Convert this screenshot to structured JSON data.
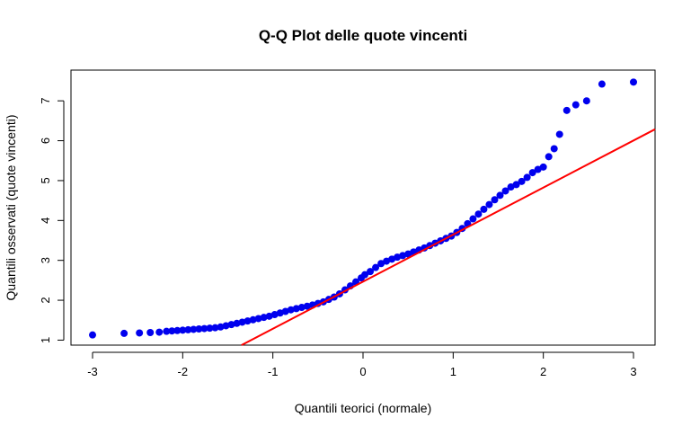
{
  "chart_data": {
    "type": "scatter",
    "title": "Q-Q Plot delle quote vincenti",
    "xlabel": "Quantili teorici (normale)",
    "ylabel": "Quantili osservati (quote vincenti)",
    "xlim": [
      -3.0,
      3.0
    ],
    "ylim": [
      1.1,
      7.5
    ],
    "x_ticks": [
      -3,
      -2,
      -1,
      0,
      1,
      2,
      3
    ],
    "x_tick_labels": [
      "-3",
      "-2",
      "-1",
      "0",
      "1",
      "2",
      "3"
    ],
    "y_ticks": [
      1,
      2,
      3,
      4,
      5,
      6,
      7
    ],
    "y_tick_labels": [
      "1",
      "2",
      "3",
      "4",
      "5",
      "6",
      "7"
    ],
    "grid": false,
    "point_color": "#0000ee",
    "line_color": "#ff0000",
    "reference_line": {
      "intercept": 2.465,
      "slope": 1.18
    },
    "points_x": [
      -3.0,
      -2.65,
      -2.48,
      -2.36,
      -2.26,
      -2.18,
      -2.12,
      -2.06,
      -2.0,
      -1.94,
      -1.88,
      -1.82,
      -1.76,
      -1.7,
      -1.64,
      -1.58,
      -1.52,
      -1.46,
      -1.4,
      -1.34,
      -1.28,
      -1.22,
      -1.16,
      -1.1,
      -1.04,
      -0.98,
      -0.92,
      -0.86,
      -0.8,
      -0.74,
      -0.68,
      -0.62,
      -0.56,
      -0.5,
      -0.44,
      -0.38,
      -0.32,
      -0.26,
      -0.2,
      -0.14,
      -0.08,
      -0.02,
      0.02,
      0.08,
      0.14,
      0.2,
      0.26,
      0.32,
      0.38,
      0.44,
      0.5,
      0.56,
      0.62,
      0.68,
      0.74,
      0.8,
      0.86,
      0.92,
      0.98,
      1.04,
      1.1,
      1.16,
      1.22,
      1.28,
      1.34,
      1.4,
      1.46,
      1.52,
      1.58,
      1.64,
      1.7,
      1.76,
      1.82,
      1.88,
      1.94,
      2.0,
      2.06,
      2.12,
      2.18,
      2.26,
      2.36,
      2.48,
      2.65,
      3.0
    ],
    "points_y": [
      1.13,
      1.17,
      1.18,
      1.19,
      1.2,
      1.22,
      1.23,
      1.24,
      1.25,
      1.26,
      1.27,
      1.28,
      1.29,
      1.3,
      1.31,
      1.33,
      1.36,
      1.39,
      1.42,
      1.45,
      1.48,
      1.51,
      1.54,
      1.57,
      1.6,
      1.64,
      1.68,
      1.72,
      1.76,
      1.79,
      1.82,
      1.85,
      1.88,
      1.92,
      1.96,
      2.02,
      2.08,
      2.16,
      2.26,
      2.36,
      2.46,
      2.56,
      2.64,
      2.72,
      2.82,
      2.92,
      2.98,
      3.03,
      3.08,
      3.12,
      3.16,
      3.21,
      3.26,
      3.31,
      3.37,
      3.43,
      3.49,
      3.55,
      3.61,
      3.7,
      3.8,
      3.92,
      4.04,
      4.16,
      4.28,
      4.4,
      4.52,
      4.63,
      4.74,
      4.84,
      4.9,
      4.98,
      5.08,
      5.2,
      5.28,
      5.34,
      5.6,
      5.8,
      6.16,
      6.76,
      6.9,
      7.0,
      7.42,
      7.47
    ]
  }
}
